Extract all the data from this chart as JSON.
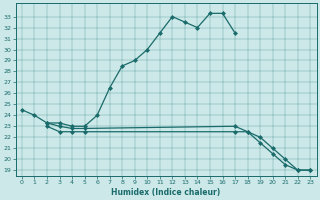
{
  "xlabel": "Humidex (Indice chaleur)",
  "background_color": "#cce8e8",
  "line_color": "#1a6b6b",
  "xlim": [
    -0.5,
    23.5
  ],
  "ylim": [
    18.5,
    34.2
  ],
  "xticks": [
    0,
    1,
    2,
    3,
    4,
    5,
    6,
    7,
    8,
    9,
    10,
    11,
    12,
    13,
    14,
    15,
    16,
    17,
    18,
    19,
    20,
    21,
    22,
    23
  ],
  "yticks": [
    19,
    20,
    21,
    22,
    23,
    24,
    25,
    26,
    27,
    28,
    29,
    30,
    31,
    32,
    33
  ],
  "series1_x": [
    0,
    1,
    2,
    3,
    4,
    5,
    6,
    7,
    8,
    9,
    10,
    11,
    12,
    13,
    14,
    15,
    16,
    17
  ],
  "series1_y": [
    24.5,
    24.0,
    23.3,
    23.3,
    23.0,
    23.0,
    24.0,
    26.5,
    28.5,
    29.0,
    30.0,
    31.5,
    33.0,
    32.5,
    32.0,
    33.3,
    33.3,
    31.5
  ],
  "series2_x": [
    2,
    3,
    4,
    5,
    17,
    18,
    19,
    20,
    21,
    22,
    23
  ],
  "series2_y": [
    23.0,
    22.5,
    22.5,
    22.5,
    22.5,
    22.5,
    22.0,
    21.0,
    20.0,
    19.0,
    19.0
  ],
  "series3_x": [
    2,
    3,
    4,
    5,
    17,
    18,
    19,
    20,
    21,
    22,
    23
  ],
  "series3_y": [
    23.3,
    23.0,
    22.8,
    22.8,
    23.0,
    22.5,
    21.5,
    20.5,
    19.5,
    19.0,
    19.0
  ]
}
